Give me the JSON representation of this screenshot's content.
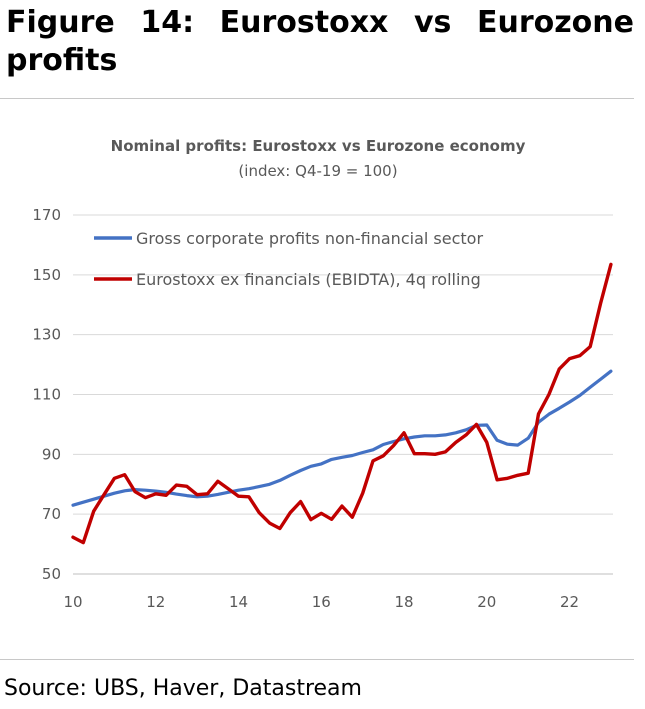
{
  "figure": {
    "title": "Figure 14: Eurostoxx vs Eurozone profits",
    "source": "Source: UBS, Haver, Datastream"
  },
  "chart_data": {
    "type": "line",
    "title": "Nominal profits: Eurostoxx vs Eurozone economy",
    "subtitle": "(index: Q4-19 = 100)",
    "xlabel": "",
    "ylabel": "",
    "xlim": [
      10,
      23.05
    ],
    "ylim": [
      50,
      170
    ],
    "x_ticks": [
      10,
      12,
      14,
      16,
      18,
      20,
      22
    ],
    "x_tick_labels": [
      "10",
      "12",
      "14",
      "16",
      "18",
      "20",
      "22"
    ],
    "y_ticks": [
      50,
      70,
      90,
      110,
      130,
      150,
      170
    ],
    "y_tick_labels": [
      "50",
      "70",
      "90",
      "110",
      "130",
      "150",
      "170"
    ],
    "grid": "horizontal",
    "legend": "top-left",
    "series": [
      {
        "name": "Gross corporate profits non-financial sector",
        "color": "#4472C4",
        "points": [
          [
            10.0,
            73
          ],
          [
            10.25,
            74
          ],
          [
            10.5,
            75
          ],
          [
            10.75,
            76
          ],
          [
            11.0,
            77
          ],
          [
            11.25,
            77.8
          ],
          [
            11.5,
            78.2
          ],
          [
            11.75,
            78
          ],
          [
            12.0,
            77.7
          ],
          [
            12.25,
            77.3
          ],
          [
            12.5,
            76.7
          ],
          [
            12.75,
            76.2
          ],
          [
            13.0,
            75.8
          ],
          [
            13.25,
            76
          ],
          [
            13.5,
            76.6
          ],
          [
            13.75,
            77.3
          ],
          [
            14.0,
            78
          ],
          [
            14.25,
            78.5
          ],
          [
            14.5,
            79.2
          ],
          [
            14.75,
            80
          ],
          [
            15.0,
            81.3
          ],
          [
            15.25,
            83
          ],
          [
            15.5,
            84.6
          ],
          [
            15.75,
            86
          ],
          [
            16.0,
            86.8
          ],
          [
            16.25,
            88.3
          ],
          [
            16.5,
            89
          ],
          [
            16.75,
            89.6
          ],
          [
            17.0,
            90.6
          ],
          [
            17.25,
            91.5
          ],
          [
            17.5,
            93.3
          ],
          [
            17.75,
            94.3
          ],
          [
            18.0,
            95.2
          ],
          [
            18.25,
            95.8
          ],
          [
            18.5,
            96.2
          ],
          [
            18.75,
            96.2
          ],
          [
            19.0,
            96.5
          ],
          [
            19.25,
            97.2
          ],
          [
            19.5,
            98.2
          ],
          [
            19.75,
            99.7
          ],
          [
            20.0,
            99.8
          ],
          [
            20.25,
            94.7
          ],
          [
            20.5,
            93.4
          ],
          [
            20.75,
            93.1
          ],
          [
            21.0,
            95.4
          ],
          [
            21.25,
            100.7
          ],
          [
            21.5,
            103.4
          ],
          [
            21.75,
            105.4
          ],
          [
            22.0,
            107.5
          ],
          [
            22.25,
            109.7
          ],
          [
            22.5,
            112.4
          ],
          [
            22.75,
            115.1
          ],
          [
            23.0,
            117.8
          ]
        ]
      },
      {
        "name": "Eurostoxx ex financials (EBIDTA), 4q rolling",
        "color": "#C00000",
        "points": [
          [
            10.0,
            62.3
          ],
          [
            10.25,
            60.5
          ],
          [
            10.5,
            71
          ],
          [
            10.75,
            76.5
          ],
          [
            11.0,
            82
          ],
          [
            11.25,
            83.2
          ],
          [
            11.5,
            77.5
          ],
          [
            11.75,
            75.5
          ],
          [
            12.0,
            76.8
          ],
          [
            12.25,
            76.3
          ],
          [
            12.5,
            79.7
          ],
          [
            12.75,
            79.3
          ],
          [
            13.0,
            76.5
          ],
          [
            13.25,
            76.8
          ],
          [
            13.5,
            81
          ],
          [
            13.75,
            78.5
          ],
          [
            14.0,
            76
          ],
          [
            14.25,
            75.8
          ],
          [
            14.5,
            70.5
          ],
          [
            14.75,
            67
          ],
          [
            15.0,
            65.2
          ],
          [
            15.25,
            70.5
          ],
          [
            15.5,
            74.2
          ],
          [
            15.75,
            68.2
          ],
          [
            16.0,
            70.3
          ],
          [
            16.25,
            68.3
          ],
          [
            16.5,
            72.7
          ],
          [
            16.75,
            69
          ],
          [
            17.0,
            77
          ],
          [
            17.25,
            87.8
          ],
          [
            17.5,
            89.5
          ],
          [
            17.75,
            93
          ],
          [
            18.0,
            97.2
          ],
          [
            18.25,
            90.2
          ],
          [
            18.5,
            90.2
          ],
          [
            18.75,
            90
          ],
          [
            19.0,
            90.8
          ],
          [
            19.25,
            94
          ],
          [
            19.5,
            96.5
          ],
          [
            19.75,
            100
          ],
          [
            20.0,
            94
          ],
          [
            20.25,
            81.5
          ],
          [
            20.5,
            82
          ],
          [
            20.75,
            83
          ],
          [
            21.0,
            83.7
          ],
          [
            21.25,
            103.5
          ],
          [
            21.5,
            110
          ],
          [
            21.75,
            118.5
          ],
          [
            22.0,
            122
          ],
          [
            22.25,
            123
          ],
          [
            22.5,
            126
          ],
          [
            22.75,
            140.5
          ],
          [
            23.0,
            153.5
          ]
        ]
      }
    ]
  }
}
